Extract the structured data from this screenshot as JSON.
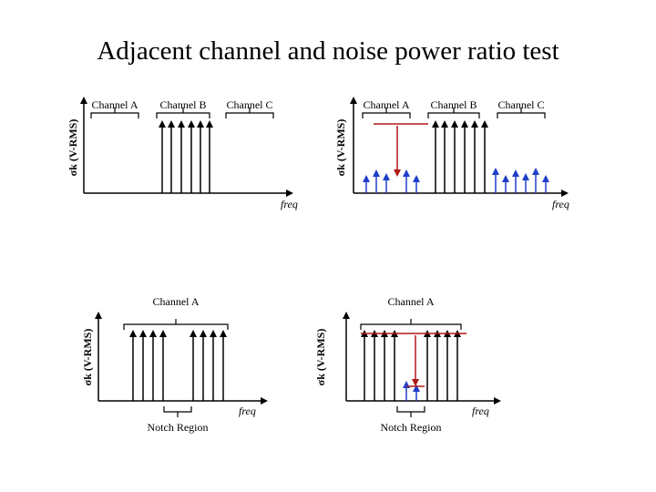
{
  "title": "Adjacent channel and noise power ratio test",
  "y_axis_label": "σk (V-RMS)",
  "x_axis_label": "freq",
  "panels": {
    "top_left": {
      "channel_a": "Channel A",
      "channel_b": "Channel B",
      "channel_c": "Channel C"
    },
    "top_right": {
      "channel_a": "Channel A",
      "channel_b": "Channel B",
      "channel_c": "Channel C"
    },
    "bottom_left": {
      "channel_a": "Channel A",
      "notch": "Notch Region"
    },
    "bottom_right": {
      "channel_a": "Channel A",
      "notch": "Notch Region"
    }
  },
  "colors": {
    "signal": "#000000",
    "distortion": "#1f3fc8",
    "annotation": "#b01818"
  }
}
